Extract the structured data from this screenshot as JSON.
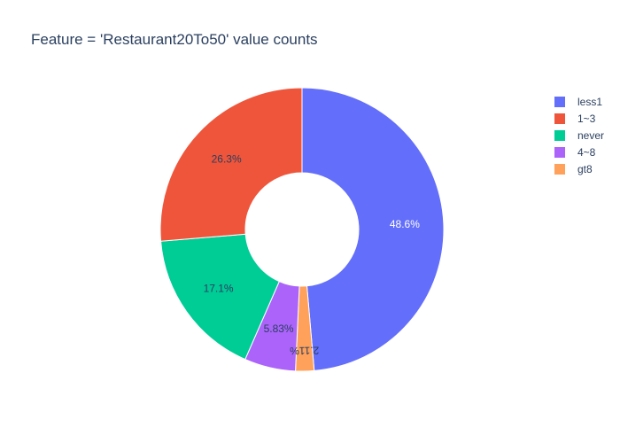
{
  "chart_data": {
    "type": "pie",
    "hole": true,
    "title": "Feature = 'Restaurant20To50' value counts",
    "legend_position": "right",
    "slices": [
      {
        "name": "less1",
        "value": 48.6,
        "label": "48.6%",
        "color": "#636efa"
      },
      {
        "name": "gt8",
        "value": 2.11,
        "label": "2.11%",
        "color": "#ffa15a"
      },
      {
        "name": "4~8",
        "value": 5.83,
        "label": "5.83%",
        "color": "#ab63fa"
      },
      {
        "name": "never",
        "value": 17.1,
        "label": "17.1%",
        "color": "#00cc96"
      },
      {
        "name": "1~3",
        "value": 26.3,
        "label": "26.3%",
        "color": "#ef553b"
      }
    ],
    "legend_order": [
      "less1",
      "1~3",
      "never",
      "4~8",
      "gt8"
    ]
  }
}
